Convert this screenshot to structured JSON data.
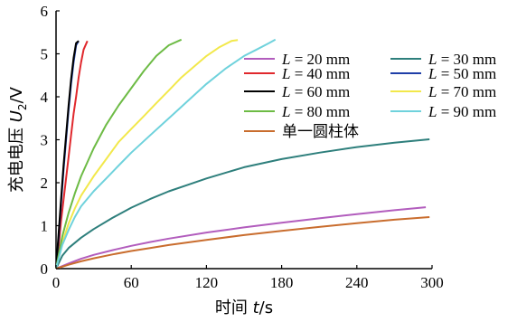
{
  "chart_data": {
    "type": "line",
    "xlabel_prefix": "时间 ",
    "xlabel_var": "t",
    "xlabel_suffix": "/s",
    "ylabel_prefix": "充电电压 ",
    "ylabel_var": "U",
    "ylabel_sub": "2",
    "ylabel_suffix": "/V",
    "xlim": [
      0,
      300
    ],
    "ylim": [
      0,
      6
    ],
    "xticks": [
      "0",
      "60",
      "120",
      "180",
      "240",
      "300"
    ],
    "yticks": [
      "0",
      "1",
      "2",
      "3",
      "4",
      "5",
      "6"
    ],
    "grid": false,
    "legend_position": "top-right",
    "series": [
      {
        "name": "= 20 mm",
        "var": "L",
        "color": "#b25dbd",
        "x": [
          0,
          10,
          20,
          30,
          45,
          60,
          75,
          90,
          120,
          150,
          180,
          210,
          240,
          270,
          295
        ],
        "y": [
          0,
          0.12,
          0.23,
          0.32,
          0.43,
          0.53,
          0.62,
          0.7,
          0.84,
          0.96,
          1.07,
          1.17,
          1.27,
          1.36,
          1.43
        ]
      },
      {
        "name": "= 30 mm",
        "var": "L",
        "color": "#2e7f7c",
        "x": [
          0,
          5,
          10,
          20,
          30,
          45,
          60,
          75,
          90,
          105,
          120,
          150,
          180,
          210,
          240,
          270,
          298
        ],
        "y": [
          0,
          0.3,
          0.48,
          0.72,
          0.92,
          1.18,
          1.42,
          1.62,
          1.8,
          1.95,
          2.1,
          2.36,
          2.55,
          2.7,
          2.83,
          2.93,
          3.01
        ]
      },
      {
        "name": "= 40 mm",
        "var": "L",
        "color": "#e0282d",
        "x": [
          0,
          2,
          4,
          6,
          8,
          10,
          12,
          14,
          16,
          18,
          20,
          22,
          25
        ],
        "y": [
          0,
          0.5,
          1.1,
          1.6,
          2.1,
          2.6,
          3.1,
          3.6,
          4.0,
          4.45,
          4.8,
          5.1,
          5.3
        ]
      },
      {
        "name": "= 50 mm",
        "var": "L",
        "color": "#1f3fa8",
        "x": [
          0,
          2,
          4,
          6,
          8,
          10,
          12,
          14,
          16,
          18
        ],
        "y": [
          0,
          0.7,
          1.5,
          2.3,
          3.0,
          3.7,
          4.3,
          4.8,
          5.2,
          5.3
        ]
      },
      {
        "name": "= 60 mm",
        "var": "L",
        "color": "#000000",
        "x": [
          0,
          2,
          4,
          6,
          8,
          10,
          12,
          14,
          16,
          18
        ],
        "y": [
          0,
          0.8,
          1.6,
          2.4,
          3.1,
          3.8,
          4.4,
          4.9,
          5.25,
          5.3
        ]
      },
      {
        "name": "= 70 mm",
        "var": "L",
        "color": "#f2e84b",
        "x": [
          0,
          5,
          10,
          15,
          20,
          30,
          40,
          50,
          60,
          70,
          80,
          90,
          100,
          110,
          120,
          130,
          140,
          145
        ],
        "y": [
          0,
          0.6,
          1.05,
          1.4,
          1.7,
          2.15,
          2.55,
          2.95,
          3.25,
          3.55,
          3.85,
          4.15,
          4.45,
          4.7,
          4.95,
          5.15,
          5.3,
          5.32
        ]
      },
      {
        "name": "= 80 mm",
        "var": "L",
        "color": "#6dbb45",
        "x": [
          0,
          5,
          10,
          15,
          20,
          30,
          40,
          50,
          60,
          70,
          80,
          90,
          100
        ],
        "y": [
          0,
          0.75,
          1.3,
          1.75,
          2.15,
          2.8,
          3.35,
          3.8,
          4.2,
          4.6,
          4.95,
          5.2,
          5.33
        ]
      },
      {
        "name": "= 90 mm",
        "var": "L",
        "color": "#6fd2dc",
        "x": [
          0,
          5,
          10,
          15,
          20,
          30,
          40,
          50,
          60,
          75,
          90,
          105,
          120,
          135,
          150,
          160,
          170,
          175
        ],
        "y": [
          0,
          0.55,
          0.9,
          1.2,
          1.45,
          1.8,
          2.1,
          2.4,
          2.7,
          3.1,
          3.5,
          3.9,
          4.3,
          4.65,
          4.95,
          5.1,
          5.25,
          5.33
        ]
      },
      {
        "name": "单一圆柱体",
        "var": "",
        "color": "#c96d2e",
        "x": [
          0,
          10,
          20,
          30,
          45,
          60,
          75,
          90,
          120,
          150,
          180,
          210,
          240,
          270,
          298
        ],
        "y": [
          0,
          0.09,
          0.17,
          0.24,
          0.33,
          0.41,
          0.48,
          0.55,
          0.67,
          0.78,
          0.88,
          0.97,
          1.06,
          1.14,
          1.2
        ]
      }
    ]
  }
}
